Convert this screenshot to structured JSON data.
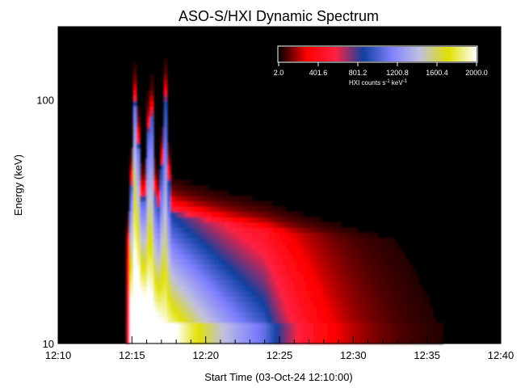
{
  "chart_data": {
    "type": "heatmap",
    "title": "ASO-S/HXI Dynamic Spectrum",
    "xlabel": "Start Time (03-Oct-24 12:10:00)",
    "ylabel": "Energy (keV)",
    "xlim": [
      "12:10",
      "12:40"
    ],
    "ylim": [
      10,
      200
    ],
    "y_scale": "log",
    "x_ticks": [
      "12:10",
      "12:15",
      "12:20",
      "12:25",
      "12:30",
      "12:35",
      "12:40"
    ],
    "y_ticks": [
      10,
      100
    ],
    "y_tick_labels": [
      "10",
      "100"
    ],
    "colorbar": {
      "label_main": "HXI counts s",
      "label_sup1": "-1",
      "label_mid": " keV",
      "label_sup2": "-1",
      "range": [
        2.0,
        2000.0
      ],
      "tick_labels": [
        "2.0",
        "401.6",
        "801.2",
        "1200.8",
        "1600.4",
        "2000.0"
      ],
      "colors": [
        "#000000",
        "#ff0000",
        "#ff2040",
        "#1040a0",
        "#8080ff",
        "#c0c0e0",
        "#e0e000",
        "#ffffff"
      ],
      "placement": "top-right"
    },
    "features": {
      "peak_times": [
        "12:15:15",
        "12:16:15",
        "12:17:15"
      ],
      "peak_energy_keV": 100,
      "core_region": {
        "time": [
          "12:15",
          "12:24"
        ],
        "energy_keV": [
          12,
          25
        ]
      },
      "background": "#000000"
    }
  }
}
